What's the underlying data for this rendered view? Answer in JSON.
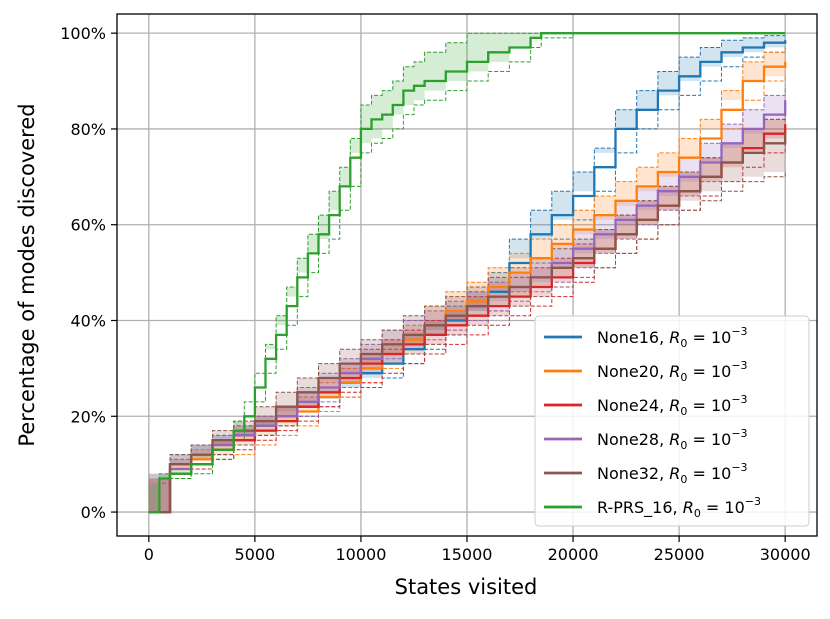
{
  "chart_data": {
    "type": "line",
    "title": "",
    "xlabel": "States visited",
    "ylabel": "Percentage of modes discovered",
    "xlim": [
      -1500,
      31500
    ],
    "ylim": [
      -5,
      104
    ],
    "xticks": [
      0,
      5000,
      10000,
      15000,
      20000,
      25000,
      30000
    ],
    "xtick_labels": [
      "0",
      "5000",
      "10000",
      "15000",
      "20000",
      "25000",
      "30000"
    ],
    "yticks": [
      0,
      20,
      40,
      60,
      80,
      100
    ],
    "ytick_labels": [
      "0%",
      "20%",
      "40%",
      "60%",
      "80%",
      "100%"
    ],
    "grid": true,
    "legend_position": "lower right",
    "series": [
      {
        "name": "None16, R0 = 10^-3",
        "legend_name": "None16, ",
        "color": "#1f77b4",
        "x": [
          0,
          1000,
          2000,
          3000,
          4000,
          5000,
          6000,
          7000,
          8000,
          9000,
          10000,
          11000,
          12000,
          13000,
          14000,
          15000,
          16000,
          17000,
          18000,
          19000,
          20000,
          21000,
          22000,
          23000,
          24000,
          25000,
          26000,
          27000,
          28000,
          29000,
          30000
        ],
        "y": [
          0,
          10,
          12,
          14,
          16,
          18,
          20,
          22,
          24,
          27,
          29,
          31,
          34,
          37,
          40,
          43,
          46,
          52,
          58,
          62,
          66,
          72,
          80,
          84,
          88,
          91,
          94,
          96,
          97,
          98,
          98.5
        ],
        "lower": [
          0,
          8,
          10,
          12,
          14,
          16,
          18,
          20,
          22,
          24,
          26,
          28,
          31,
          34,
          37,
          40,
          42,
          47,
          53,
          57,
          61,
          67,
          75,
          80,
          84,
          87,
          90,
          93,
          95,
          96,
          97
        ],
        "upper": [
          0,
          12,
          14,
          16,
          18,
          20,
          22,
          24,
          26,
          29,
          32,
          34,
          37,
          40,
          43,
          46,
          50,
          57,
          63,
          67,
          71,
          76,
          84,
          88,
          92,
          95,
          97,
          98.5,
          99,
          99.5,
          99.5
        ]
      },
      {
        "name": "None20, R0 = 10^-3",
        "legend_name": "None20, ",
        "color": "#ff7f0e",
        "x": [
          0,
          1000,
          2000,
          3000,
          4000,
          5000,
          6000,
          7000,
          8000,
          9000,
          10000,
          11000,
          12000,
          13000,
          14000,
          15000,
          16000,
          17000,
          18000,
          19000,
          20000,
          21000,
          22000,
          23000,
          24000,
          25000,
          26000,
          27000,
          28000,
          29000,
          30000
        ],
        "y": [
          0,
          9,
          11,
          13,
          15,
          17,
          19,
          21,
          24,
          27,
          30,
          33,
          36,
          39,
          42,
          44,
          47,
          50,
          53,
          56,
          59,
          62,
          65,
          68,
          71,
          74,
          78,
          84,
          90,
          93,
          94
        ],
        "lower": [
          0,
          7,
          9,
          11,
          12,
          14,
          16,
          18,
          21,
          24,
          27,
          30,
          33,
          35,
          38,
          40,
          43,
          46,
          49,
          52,
          55,
          58,
          61,
          64,
          67,
          70,
          74,
          80,
          86,
          90,
          91
        ],
        "upper": [
          0,
          11,
          13,
          15,
          18,
          20,
          22,
          24,
          27,
          30,
          33,
          36,
          39,
          43,
          46,
          48,
          51,
          54,
          57,
          60,
          63,
          66,
          69,
          72,
          75,
          78,
          82,
          88,
          94,
          96,
          97
        ]
      },
      {
        "name": "None24, R0 = 10^-3",
        "legend_name": "None24, ",
        "color": "#d62728",
        "x": [
          0,
          1000,
          2000,
          3000,
          4000,
          5000,
          6000,
          7000,
          8000,
          9000,
          10000,
          11000,
          12000,
          13000,
          14000,
          15000,
          16000,
          17000,
          18000,
          19000,
          20000,
          21000,
          22000,
          23000,
          24000,
          25000,
          26000,
          27000,
          28000,
          29000,
          30000
        ],
        "y": [
          0,
          8,
          10,
          13,
          15,
          17,
          19,
          22,
          25,
          28,
          31,
          33,
          35,
          37,
          39,
          41,
          43,
          45,
          47,
          49,
          52,
          55,
          58,
          61,
          64,
          67,
          70,
          73,
          76,
          79,
          81
        ],
        "lower": [
          0,
          7,
          9,
          11,
          13,
          15,
          17,
          19,
          22,
          25,
          27,
          29,
          31,
          33,
          35,
          37,
          39,
          41,
          43,
          45,
          48,
          51,
          54,
          57,
          60,
          63,
          66,
          69,
          72,
          75,
          78
        ],
        "upper": [
          0,
          10,
          12,
          15,
          17,
          19,
          22,
          25,
          28,
          31,
          34,
          36,
          38,
          40,
          42,
          45,
          47,
          49,
          51,
          53,
          56,
          59,
          62,
          65,
          68,
          71,
          74,
          77,
          80,
          82,
          84
        ]
      },
      {
        "name": "None28, R0 = 10^-3",
        "legend_name": "None28, ",
        "color": "#9467bd",
        "x": [
          0,
          1000,
          2000,
          3000,
          4000,
          5000,
          6000,
          7000,
          8000,
          9000,
          10000,
          11000,
          12000,
          13000,
          14000,
          15000,
          16000,
          17000,
          18000,
          19000,
          20000,
          21000,
          22000,
          23000,
          24000,
          25000,
          26000,
          27000,
          28000,
          29000,
          30000
        ],
        "y": [
          0,
          9,
          12,
          14,
          16,
          18,
          20,
          23,
          26,
          29,
          32,
          35,
          37,
          39,
          41,
          43,
          45,
          47,
          49,
          52,
          55,
          58,
          61,
          64,
          67,
          70,
          73,
          77,
          80,
          83,
          86
        ],
        "lower": [
          0,
          7,
          10,
          12,
          14,
          16,
          18,
          20,
          23,
          26,
          29,
          32,
          34,
          36,
          38,
          40,
          42,
          44,
          46,
          48,
          51,
          54,
          57,
          60,
          63,
          66,
          69,
          73,
          76,
          79,
          82
        ],
        "upper": [
          0,
          11,
          14,
          16,
          18,
          20,
          22,
          26,
          29,
          32,
          35,
          38,
          40,
          42,
          44,
          46,
          48,
          50,
          52,
          56,
          59,
          62,
          65,
          68,
          71,
          74,
          77,
          81,
          84,
          87,
          89
        ]
      },
      {
        "name": "None32, R0 = 10^-3",
        "legend_name": "None32, ",
        "color": "#8c564b",
        "x": [
          0,
          1000,
          2000,
          3000,
          4000,
          5000,
          6000,
          7000,
          8000,
          9000,
          10000,
          11000,
          12000,
          13000,
          14000,
          15000,
          16000,
          17000,
          18000,
          19000,
          20000,
          21000,
          22000,
          23000,
          24000,
          25000,
          26000,
          27000,
          28000,
          29000,
          30000
        ],
        "y": [
          0,
          10,
          12,
          15,
          17,
          19,
          22,
          25,
          28,
          31,
          33,
          35,
          37,
          39,
          41,
          43,
          45,
          47,
          49,
          51,
          53,
          55,
          58,
          61,
          64,
          67,
          70,
          73,
          75,
          77,
          79
        ],
        "lower": [
          0,
          8,
          10,
          12,
          14,
          16,
          18,
          21,
          24,
          27,
          29,
          31,
          33,
          35,
          37,
          39,
          41,
          43,
          45,
          47,
          49,
          51,
          54,
          57,
          60,
          63,
          65,
          67,
          69,
          70,
          71
        ],
        "upper": [
          0,
          12,
          14,
          17,
          19,
          22,
          25,
          28,
          31,
          34,
          36,
          38,
          41,
          43,
          45,
          47,
          49,
          51,
          53,
          55,
          57,
          59,
          62,
          65,
          68,
          71,
          74,
          77,
          80,
          82,
          84
        ]
      },
      {
        "name": "R-PRS_16, R0 = 10^-3",
        "legend_name": "R-PRS_16, ",
        "color": "#2ca02c",
        "x": [
          0,
          500,
          1000,
          2000,
          3000,
          4000,
          4500,
          5000,
          5500,
          6000,
          6500,
          7000,
          7500,
          8000,
          8500,
          9000,
          9500,
          10000,
          10500,
          11000,
          11500,
          12000,
          12500,
          13000,
          14000,
          15000,
          16000,
          17000,
          18000,
          18500,
          20000,
          22000,
          25000,
          28000,
          30000
        ],
        "y": [
          0,
          7,
          8,
          10,
          13,
          17,
          20,
          26,
          32,
          37,
          43,
          49,
          54,
          58,
          62,
          68,
          74,
          80,
          82,
          83,
          85,
          88,
          89,
          90,
          92,
          94,
          96,
          97,
          99,
          100,
          100,
          100,
          100,
          100,
          100
        ],
        "lower": [
          0,
          6,
          7,
          8,
          11,
          15,
          18,
          23,
          29,
          34,
          39,
          45,
          50,
          54,
          57,
          63,
          68,
          75,
          77,
          78,
          80,
          83,
          85,
          86,
          88,
          90,
          92,
          94,
          97,
          99,
          100,
          100,
          100,
          100,
          100
        ],
        "upper": [
          0,
          8,
          9,
          12,
          15,
          19,
          23,
          29,
          35,
          41,
          47,
          53,
          58,
          62,
          67,
          72,
          78,
          85,
          87,
          88,
          90,
          93,
          94,
          96,
          98,
          100,
          100,
          100,
          100,
          100,
          100,
          100,
          100,
          100,
          100
        ]
      }
    ]
  }
}
